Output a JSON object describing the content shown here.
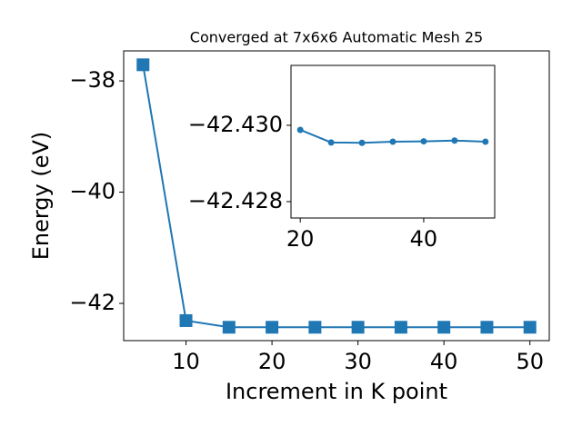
{
  "chart_data": [
    {
      "type": "line",
      "title": "Converged at 7x6x6 Automatic Mesh 25",
      "xlabel": "Increment in K point",
      "ylabel": "Energy (eV)",
      "x": [
        5,
        10,
        15,
        20,
        25,
        30,
        35,
        40,
        45,
        50
      ],
      "series": [
        {
          "color": "#1f77b4",
          "marker": "square",
          "values": [
            -37.71,
            -42.31,
            -42.4299,
            -42.4299,
            -42.42955,
            -42.42954,
            -42.42957,
            -42.42958,
            -42.4296,
            -42.42957
          ]
        }
      ],
      "xlim": [
        2.75,
        52.25
      ],
      "xticks": [
        10,
        20,
        30,
        40,
        50
      ],
      "ylim": [
        -42.67,
        -37.46
      ],
      "yticks": [
        {
          "value": -42,
          "label": "−42"
        },
        {
          "value": -40,
          "label": "−40"
        },
        {
          "value": -38,
          "label": "−38"
        }
      ]
    },
    {
      "type": "line",
      "x": [
        20,
        25,
        30,
        35,
        40,
        45,
        50
      ],
      "series": [
        {
          "color": "#1f77b4",
          "marker": "circle",
          "values": [
            -42.42988,
            -42.42955,
            -42.42954,
            -42.42957,
            -42.42958,
            -42.4296,
            -42.42957
          ]
        }
      ],
      "xlim": [
        18.5,
        51.5
      ],
      "xticks": [
        20,
        40
      ],
      "ylim": [
        -42.42757,
        -42.43157
      ],
      "yticks": [
        {
          "value": -42.428,
          "label": "−42.428"
        },
        {
          "value": -42.43,
          "label": "−42.430"
        }
      ]
    }
  ]
}
